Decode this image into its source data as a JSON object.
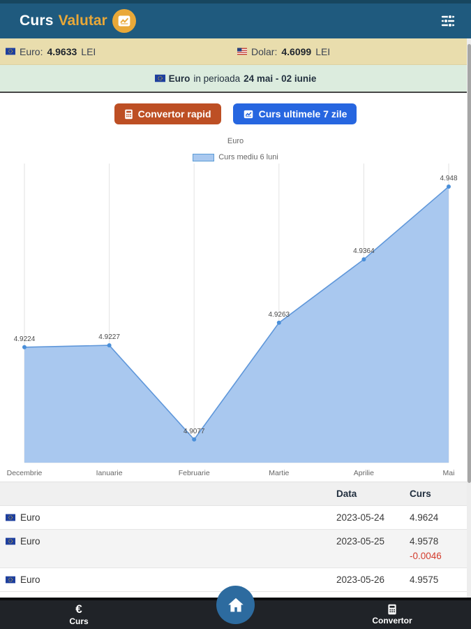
{
  "header": {
    "title_part1": "Curs",
    "title_part2": "Valutar"
  },
  "rates_bar": {
    "euro_label": "Euro:",
    "euro_value": "4.9633",
    "euro_unit": "LEI",
    "dolar_label": "Dolar:",
    "dolar_value": "4.6099",
    "dolar_unit": "LEI"
  },
  "period_bar": {
    "currency": "Euro",
    "middle": "in perioada",
    "range": "24 mai - 02 iunie"
  },
  "actions": {
    "convertor_button": "Convertor rapid",
    "curs_button": "Curs ultimele 7 zile"
  },
  "chart_data": {
    "type": "area",
    "title": "Euro",
    "legend": "Curs mediu 6 luni",
    "legend_position": "top",
    "categories": [
      "Decembrie",
      "Ianuarie",
      "Februarie",
      "Martie",
      "Aprilie",
      "Mai"
    ],
    "values": [
      4.9224,
      4.9227,
      4.9077,
      4.9263,
      4.9364,
      4.948
    ],
    "point_labels": [
      "4.9224",
      "4.9227",
      "4.9077",
      "4.9263",
      "4.9364",
      "4.948"
    ],
    "xlabel": "",
    "ylabel": "",
    "ylim": [
      4.904,
      4.95
    ],
    "grid": "vertical",
    "colors": {
      "fill": "#a9c8ef",
      "line": "#5f97da",
      "point": "#4a8fd9",
      "grid": "#e7e7e7"
    }
  },
  "table": {
    "headers": [
      "Data",
      "Curs"
    ],
    "rows": [
      {
        "currency": "Euro",
        "date": "2023-05-24",
        "curs": "4.9624"
      },
      {
        "currency": "Euro",
        "date": "2023-05-25",
        "curs": "4.9578",
        "change": "-0.0046"
      },
      {
        "currency": "Euro",
        "date": "2023-05-26",
        "curs": "4.9575"
      }
    ]
  },
  "bottom_nav": {
    "curs_symbol": "€",
    "curs_label": "Curs",
    "convertor_label": "Convertor"
  },
  "colors": {
    "header_bg": "#1f5a7e",
    "accent_gold": "#e9a838",
    "rates_bar_bg": "#e9ddad",
    "period_bar_bg": "#dcecde",
    "orange_button": "#bd4f24",
    "blue_button": "#2666e0",
    "negative_change": "#d33b2c",
    "nav_bg": "#202328",
    "home_button": "#2d6b9f"
  }
}
